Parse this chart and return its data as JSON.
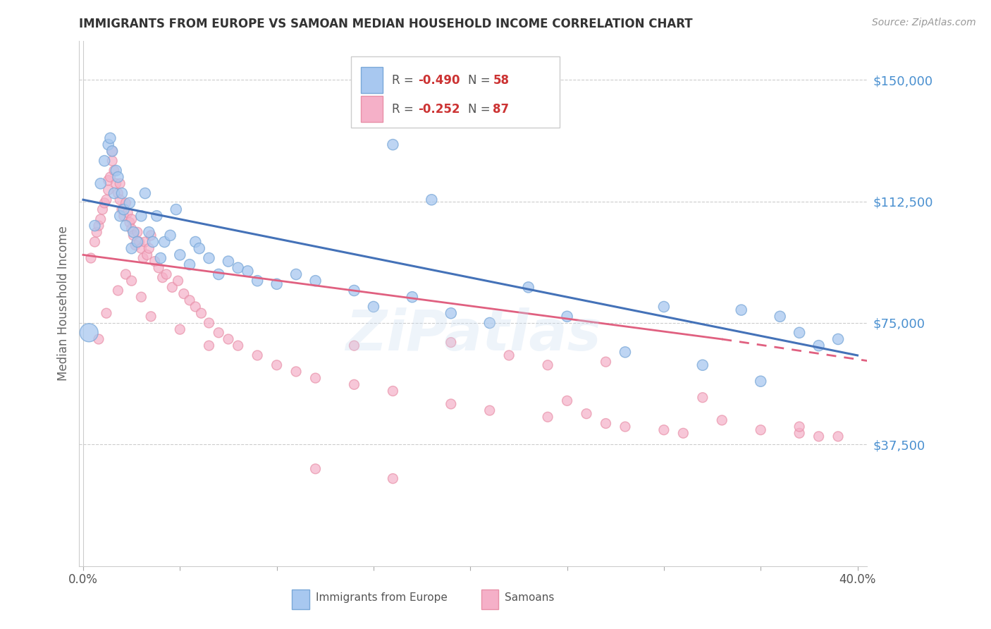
{
  "title": "IMMIGRANTS FROM EUROPE VS SAMOAN MEDIAN HOUSEHOLD INCOME CORRELATION CHART",
  "source": "Source: ZipAtlas.com",
  "ylabel": "Median Household Income",
  "xlim": [
    0.0,
    0.4
  ],
  "ylim": [
    0,
    162000
  ],
  "watermark": "ZiPatlas",
  "legend_blue_r": "R = -0.490",
  "legend_blue_n": "N = 58",
  "legend_pink_r": "R = -0.252",
  "legend_pink_n": "N = 87",
  "blue_color": "#a8c8f0",
  "pink_color": "#f5b0c8",
  "blue_edge_color": "#7aa8d8",
  "pink_edge_color": "#e890a8",
  "blue_line_color": "#4472b8",
  "pink_line_color": "#e06080",
  "axis_label_color": "#4a90d0",
  "grid_color": "#cccccc",
  "blue_regression": [
    0.0,
    0.4,
    113000,
    65000
  ],
  "pink_regression_solid": [
    0.0,
    0.33,
    96000,
    70000
  ],
  "pink_regression_dash": [
    0.33,
    0.42,
    70000,
    62000
  ],
  "blue_scatter_x": [
    0.003,
    0.006,
    0.009,
    0.011,
    0.013,
    0.014,
    0.015,
    0.016,
    0.017,
    0.018,
    0.019,
    0.02,
    0.021,
    0.022,
    0.024,
    0.025,
    0.026,
    0.028,
    0.03,
    0.032,
    0.034,
    0.036,
    0.038,
    0.04,
    0.042,
    0.045,
    0.048,
    0.05,
    0.055,
    0.058,
    0.06,
    0.065,
    0.07,
    0.075,
    0.08,
    0.085,
    0.09,
    0.1,
    0.11,
    0.12,
    0.14,
    0.15,
    0.17,
    0.19,
    0.21,
    0.23,
    0.25,
    0.28,
    0.3,
    0.32,
    0.34,
    0.35,
    0.36,
    0.37,
    0.38,
    0.39,
    0.16,
    0.18
  ],
  "blue_scatter_y": [
    72000,
    105000,
    118000,
    125000,
    130000,
    132000,
    128000,
    115000,
    122000,
    120000,
    108000,
    115000,
    110000,
    105000,
    112000,
    98000,
    103000,
    100000,
    108000,
    115000,
    103000,
    100000,
    108000,
    95000,
    100000,
    102000,
    110000,
    96000,
    93000,
    100000,
    98000,
    95000,
    90000,
    94000,
    92000,
    91000,
    88000,
    87000,
    90000,
    88000,
    85000,
    80000,
    83000,
    78000,
    75000,
    86000,
    77000,
    66000,
    80000,
    62000,
    79000,
    57000,
    77000,
    72000,
    68000,
    70000,
    130000,
    113000
  ],
  "blue_scatter_sizes": [
    350,
    120,
    120,
    120,
    120,
    120,
    120,
    120,
    120,
    120,
    120,
    120,
    120,
    120,
    120,
    120,
    120,
    120,
    120,
    120,
    120,
    120,
    120,
    120,
    120,
    120,
    120,
    120,
    120,
    120,
    120,
    120,
    120,
    120,
    120,
    120,
    120,
    120,
    120,
    120,
    120,
    120,
    120,
    120,
    120,
    120,
    120,
    120,
    120,
    120,
    120,
    120,
    120,
    120,
    120,
    120,
    120,
    120
  ],
  "pink_scatter_x": [
    0.004,
    0.006,
    0.007,
    0.008,
    0.009,
    0.01,
    0.011,
    0.012,
    0.013,
    0.013,
    0.014,
    0.015,
    0.015,
    0.016,
    0.017,
    0.018,
    0.019,
    0.019,
    0.02,
    0.021,
    0.022,
    0.023,
    0.024,
    0.025,
    0.025,
    0.026,
    0.027,
    0.028,
    0.029,
    0.03,
    0.031,
    0.032,
    0.033,
    0.034,
    0.035,
    0.037,
    0.039,
    0.041,
    0.043,
    0.046,
    0.049,
    0.052,
    0.055,
    0.058,
    0.061,
    0.065,
    0.07,
    0.075,
    0.08,
    0.09,
    0.1,
    0.11,
    0.12,
    0.14,
    0.16,
    0.19,
    0.21,
    0.24,
    0.27,
    0.28,
    0.3,
    0.31,
    0.24,
    0.27,
    0.14,
    0.19,
    0.22,
    0.25,
    0.33,
    0.35,
    0.37,
    0.39,
    0.008,
    0.012,
    0.018,
    0.022,
    0.025,
    0.03,
    0.035,
    0.05,
    0.065,
    0.12,
    0.16,
    0.26,
    0.32,
    0.37,
    0.38
  ],
  "pink_scatter_y": [
    95000,
    100000,
    103000,
    105000,
    107000,
    110000,
    112000,
    113000,
    116000,
    119000,
    120000,
    125000,
    128000,
    122000,
    118000,
    115000,
    113000,
    118000,
    110000,
    108000,
    112000,
    109000,
    106000,
    104000,
    107000,
    102000,
    99000,
    103000,
    100000,
    98000,
    95000,
    100000,
    96000,
    98000,
    102000,
    94000,
    92000,
    89000,
    90000,
    86000,
    88000,
    84000,
    82000,
    80000,
    78000,
    75000,
    72000,
    70000,
    68000,
    65000,
    62000,
    60000,
    58000,
    56000,
    54000,
    50000,
    48000,
    46000,
    44000,
    43000,
    42000,
    41000,
    62000,
    63000,
    68000,
    69000,
    65000,
    51000,
    45000,
    42000,
    41000,
    40000,
    70000,
    78000,
    85000,
    90000,
    88000,
    83000,
    77000,
    73000,
    68000,
    30000,
    27000,
    47000,
    52000,
    43000,
    40000
  ]
}
